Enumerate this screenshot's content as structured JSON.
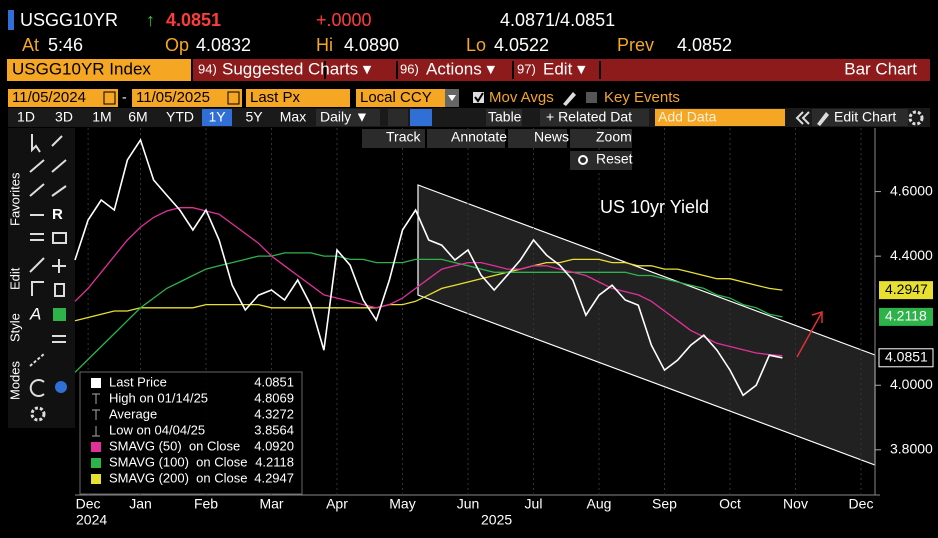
{
  "header": {
    "ticker": "USGG10YR",
    "arrow": "↑",
    "price": "4.0851",
    "change": "+.0000",
    "bid_ask": "4.0871/4.0851",
    "time_label": "At",
    "time": "5:46",
    "open_label": "Op",
    "open": "4.0832",
    "high_label": "Hi",
    "high": "4.0890",
    "low_label": "Lo",
    "low": "4.0522",
    "prev_label": "Prev",
    "prev": "4.0852"
  },
  "menu": {
    "security": "USGG10YR Index",
    "items": [
      {
        "num": "94)",
        "label": "Suggested Charts ▾"
      },
      {
        "num": "96)",
        "label": "Actions ▾"
      },
      {
        "num": "97)",
        "label": "Edit ▾"
      }
    ],
    "chart_type": "Bar Chart"
  },
  "controls": {
    "start_date": "11/05/2024",
    "separator": "-",
    "end_date": "11/05/2025",
    "field": "Last Px",
    "currency": "Local CCY",
    "mov_avgs": "Mov Avgs",
    "key_events": "Key Events",
    "ranges": [
      "1D",
      "3D",
      "1M",
      "6M",
      "YTD",
      "1Y",
      "5Y",
      "Max"
    ],
    "period": "Daily ▼",
    "table": "Table",
    "related": "+ Related Dat",
    "add_data": "Add Data",
    "edit_chart": "Edit Chart"
  },
  "chart_tools": [
    "Track",
    "Annotate",
    "News",
    "Zoom"
  ],
  "reset": "Reset",
  "side_labels": [
    "Favorites",
    "Edit",
    "Style",
    "Modes"
  ],
  "chart_data": {
    "type": "line",
    "title": "US 10yr Yield",
    "categories": [
      null,
      "Dec",
      null,
      null,
      null,
      "Jan",
      null,
      null,
      null,
      null,
      "Feb",
      null,
      null,
      null,
      null,
      "Mar",
      null,
      null,
      null,
      null,
      "Apr",
      null,
      null,
      null,
      null,
      "May",
      null,
      null,
      null,
      null,
      "Jun",
      null,
      null,
      null,
      null,
      "Jul",
      null,
      null,
      null,
      null,
      "Aug",
      null,
      null,
      null,
      null,
      "Sep",
      null,
      null,
      null,
      null,
      "Oct",
      null,
      null,
      null,
      null,
      "Nov",
      null,
      null,
      null,
      null,
      "Dec"
    ],
    "years": [
      "2024",
      "2025"
    ],
    "ylim": [
      3.66,
      4.797
    ],
    "yticks": [
      {
        "value": 3.8,
        "label": "3.8000"
      },
      {
        "value": 4.0,
        "label": "4.0000"
      },
      {
        "value": 4.4,
        "label": "4.4000"
      },
      {
        "value": 4.6,
        "label": "4.6000"
      }
    ],
    "series": [
      {
        "name": "Last Price",
        "color": "#ffffff",
        "last_value_flag": true,
        "values": [
          4.388,
          4.512,
          4.574,
          4.543,
          4.698,
          4.76,
          4.636,
          4.589,
          4.543,
          4.481,
          4.543,
          4.45,
          4.31,
          4.233,
          4.279,
          4.295,
          4.264,
          4.326,
          4.248,
          4.109,
          4.419,
          4.372,
          4.264,
          4.202,
          4.326,
          4.481,
          4.543,
          4.45,
          4.434,
          4.388,
          4.419,
          4.341,
          4.295,
          4.341,
          4.388,
          4.45,
          4.403,
          4.372,
          4.326,
          4.217,
          4.279,
          4.31,
          4.264,
          4.248,
          4.124,
          4.047,
          4.078,
          4.124,
          4.155,
          4.109,
          4.047,
          3.969,
          4.0,
          4.093,
          4.0851,
          null,
          null,
          null,
          null,
          null,
          null
        ]
      },
      {
        "name": "SMAVG (50)  on Close",
        "color": "#e0309a",
        "last_value_flag": false,
        "values": [
          4.26,
          4.3,
          4.35,
          4.4,
          4.45,
          4.49,
          4.52,
          4.54,
          4.55,
          4.55,
          4.54,
          4.53,
          4.5,
          4.47,
          4.44,
          4.4,
          4.37,
          4.34,
          4.31,
          4.28,
          4.27,
          4.26,
          4.25,
          4.24,
          4.25,
          4.27,
          4.3,
          4.33,
          4.36,
          4.37,
          4.38,
          4.38,
          4.37,
          4.36,
          4.36,
          4.37,
          4.37,
          4.36,
          4.35,
          4.34,
          4.32,
          4.3,
          4.29,
          4.28,
          4.26,
          4.23,
          4.2,
          4.17,
          4.15,
          4.13,
          4.12,
          4.11,
          4.1,
          4.095,
          4.092,
          null,
          null,
          null,
          null,
          null,
          null
        ]
      },
      {
        "name": "SMAVG (100)  on Close",
        "color": "#2db34a",
        "last_value_flag": true,
        "values": [
          4.04,
          4.08,
          4.12,
          4.16,
          4.2,
          4.24,
          4.27,
          4.3,
          4.32,
          4.34,
          4.36,
          4.37,
          4.38,
          4.39,
          4.4,
          4.4,
          4.41,
          4.41,
          4.41,
          4.4,
          4.4,
          4.39,
          4.39,
          4.38,
          4.38,
          4.38,
          4.39,
          4.39,
          4.39,
          4.38,
          4.37,
          4.36,
          4.35,
          4.35,
          4.35,
          4.35,
          4.35,
          4.35,
          4.35,
          4.35,
          4.35,
          4.35,
          4.35,
          4.34,
          4.34,
          4.33,
          4.32,
          4.31,
          4.3,
          4.28,
          4.27,
          4.25,
          4.24,
          4.22,
          4.2118,
          null,
          null,
          null,
          null,
          null,
          null
        ]
      },
      {
        "name": "SMAVG (200)  on Close",
        "color": "#e8e030",
        "last_value_flag": true,
        "values": [
          4.2,
          4.21,
          4.22,
          4.23,
          4.23,
          4.24,
          4.24,
          4.24,
          4.24,
          4.24,
          4.25,
          4.25,
          4.25,
          4.25,
          4.25,
          4.24,
          4.24,
          4.24,
          4.24,
          4.24,
          4.24,
          4.24,
          4.24,
          4.24,
          4.25,
          4.25,
          4.26,
          4.28,
          4.3,
          4.31,
          4.32,
          4.33,
          4.34,
          4.35,
          4.36,
          4.37,
          4.38,
          4.38,
          4.39,
          4.39,
          4.39,
          4.38,
          4.38,
          4.37,
          4.37,
          4.36,
          4.36,
          4.35,
          4.34,
          4.33,
          4.33,
          4.32,
          4.31,
          4.3,
          4.2947,
          null,
          null,
          null,
          null,
          null,
          null
        ]
      }
    ],
    "legend_values": [
      "4.0851",
      "4.0920",
      "4.2118",
      "4.2947"
    ],
    "stats": [
      {
        "label": "High on 01/14/25",
        "value": "4.8069"
      },
      {
        "label": "Average",
        "value": "4.3272"
      },
      {
        "label": "Low on 04/04/25",
        "value": "3.8564"
      }
    ]
  }
}
